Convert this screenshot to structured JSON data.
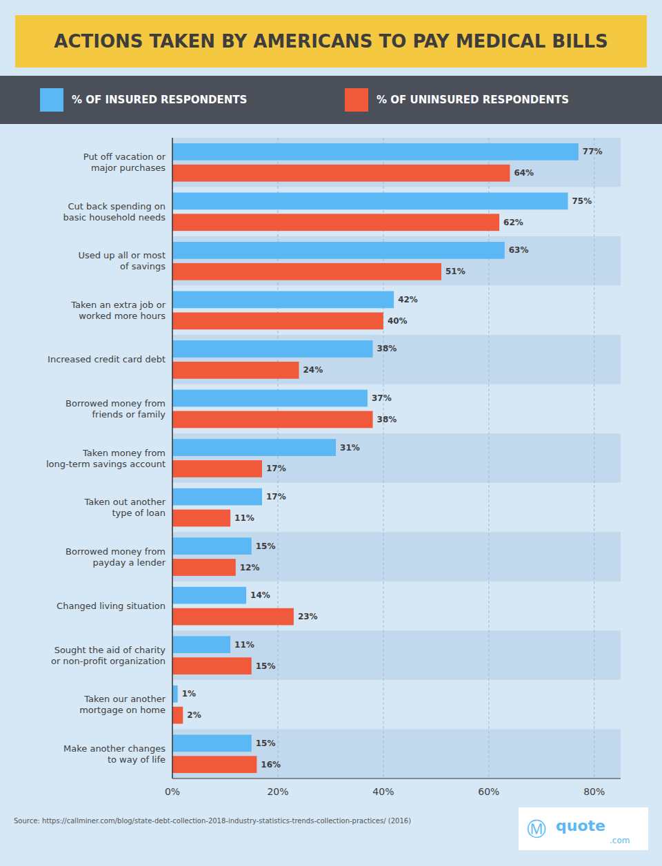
{
  "chart_data": {
    "type": "bar",
    "orientation": "horizontal",
    "title": "ACTIONS TAKEN BY AMERICANS TO PAY MEDICAL BILLS",
    "categories": [
      "Put off vacation or\nmajor purchases",
      "Cut back spending on\nbasic household needs",
      "Used up all or most\nof savings",
      "Taken an extra job or\nworked more hours",
      "Increased credit card debt",
      "Borrowed money from\nfriends or family",
      "Taken money from\nlong-term savings account",
      "Taken out another\ntype of loan",
      "Borrowed money from\npayday a lender",
      "Changed living situation",
      "Sought the aid of charity\nor non-profit organization",
      "Taken our another\nmortgage on home",
      "Make another changes\nto way of life"
    ],
    "series": [
      {
        "name": "% OF INSURED RESPONDENTS",
        "color": "#5BB8F5",
        "values": [
          77,
          75,
          63,
          42,
          38,
          37,
          31,
          17,
          15,
          14,
          11,
          1,
          15
        ],
        "value_labels": [
          "77%",
          "75%",
          "63%",
          "42%",
          "38%",
          "37%",
          "31%",
          "17%",
          "15%",
          "14%",
          "11%",
          "1%",
          "15%"
        ]
      },
      {
        "name": "% OF UNINSURED RESPONDENTS",
        "color": "#F05A3A",
        "values": [
          64,
          62,
          51,
          40,
          24,
          38,
          17,
          11,
          12,
          23,
          15,
          2,
          16
        ],
        "value_labels": [
          "64%",
          "62%",
          "51%",
          "40%",
          "24%",
          "38%",
          "17%",
          "11%",
          "12%",
          "23%",
          "15%",
          "2%",
          "16%"
        ]
      }
    ],
    "xlim": [
      0,
      85
    ],
    "xticks": [
      {
        "value": 0,
        "label": "0%"
      },
      {
        "value": 20,
        "label": "20%"
      },
      {
        "value": 40,
        "label": "40%"
      },
      {
        "value": 60,
        "label": "60%"
      },
      {
        "value": 80,
        "label": "80%"
      }
    ],
    "grid": true,
    "data_labels": true,
    "source": "Source: https://callminer.com/blog/state-debt-collection-2018-industry-statistics-trends-collection-practices/ (2016)",
    "annotations": [
      "Ⓜ",
      "quote",
      ".com"
    ]
  }
}
